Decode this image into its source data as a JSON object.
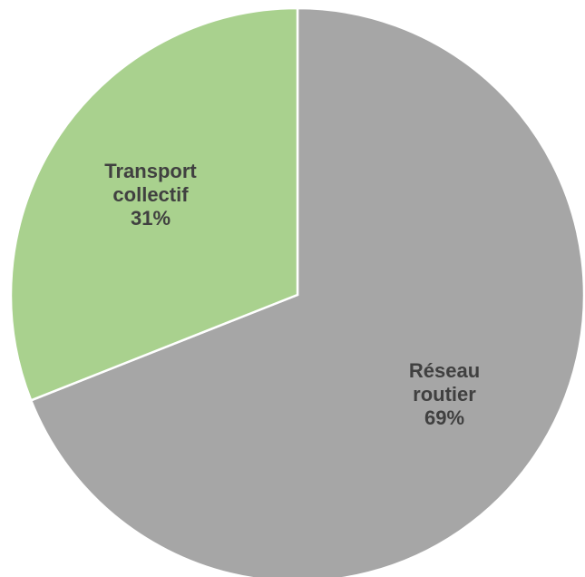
{
  "chart_data": {
    "type": "pie",
    "title": "",
    "start": "12 o'clock",
    "direction": "clockwise",
    "slices": [
      {
        "label_lines": [
          "Réseau",
          "routier"
        ],
        "percent_text": "69%",
        "value": 69,
        "color": "#a6a6a6"
      },
      {
        "label_lines": [
          "Transport",
          "collectif"
        ],
        "percent_text": "31%",
        "value": 31,
        "color": "#a9d18e"
      }
    ],
    "legend": "none",
    "label_position": "inside"
  }
}
